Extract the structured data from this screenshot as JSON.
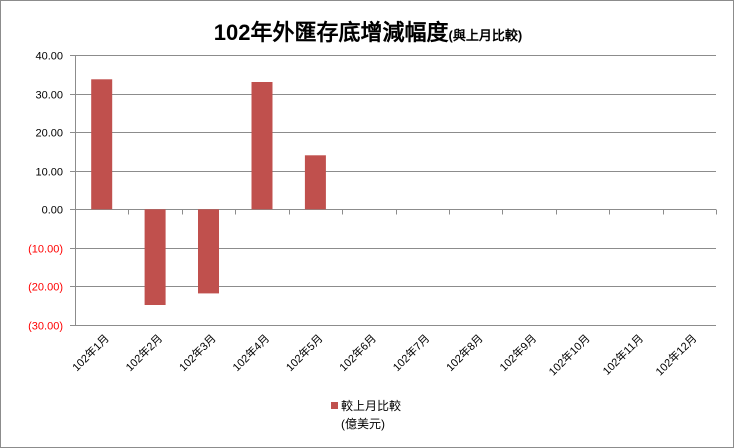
{
  "chart_data": {
    "type": "bar",
    "title": "102年外匯存底增減幅度",
    "title_suffix": "(與上月比較)",
    "categories": [
      "102年1月",
      "102年2月",
      "102年3月",
      "102年4月",
      "102年5月",
      "102年6月",
      "102年7月",
      "102年8月",
      "102年9月",
      "102年10月",
      "102年11月",
      "102年12月"
    ],
    "series": [
      {
        "name": "較上月比較",
        "unit": "(億美元)",
        "color": "#c0504d",
        "values": [
          33.7,
          -24.8,
          -21.8,
          33.0,
          14.0,
          null,
          null,
          null,
          null,
          null,
          null,
          null
        ]
      }
    ],
    "ylim": [
      -30,
      40
    ],
    "yticks": [
      40,
      30,
      20,
      10,
      0,
      -10,
      -20,
      -30
    ],
    "ytick_labels": [
      "40.00",
      "30.00",
      "20.00",
      "10.00",
      "0.00",
      "(10.00)",
      "(20.00)",
      "(30.00)"
    ],
    "negative_label_color": "#ff0000",
    "grid": true,
    "legend_position": "bottom"
  }
}
